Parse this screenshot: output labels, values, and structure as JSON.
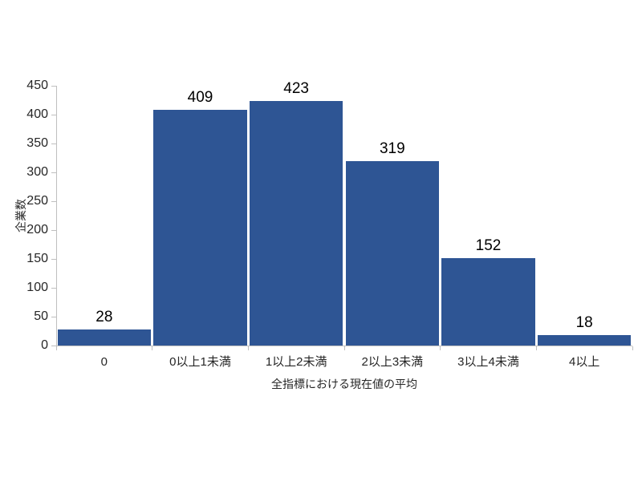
{
  "chart_data": {
    "type": "bar",
    "categories": [
      "0",
      "0以上1未満",
      "1以上2未満",
      "2以上3未満",
      "3以上4未満",
      "4以上"
    ],
    "values": [
      28,
      409,
      423,
      319,
      152,
      18
    ],
    "title": "",
    "xlabel": "全指標における現在値の平均",
    "ylabel": "企業数",
    "ylim": [
      0,
      450
    ],
    "y_ticks": [
      0,
      50,
      100,
      150,
      200,
      250,
      300,
      350,
      400,
      450
    ],
    "grid": false,
    "legend": "none",
    "data_labels_shown": true,
    "bar_color": "#2E5594",
    "axis_color": "#BFBFBF",
    "tick_label_color": "#262626",
    "value_label_color": "#000000",
    "background_color": "#FFFFFF"
  }
}
